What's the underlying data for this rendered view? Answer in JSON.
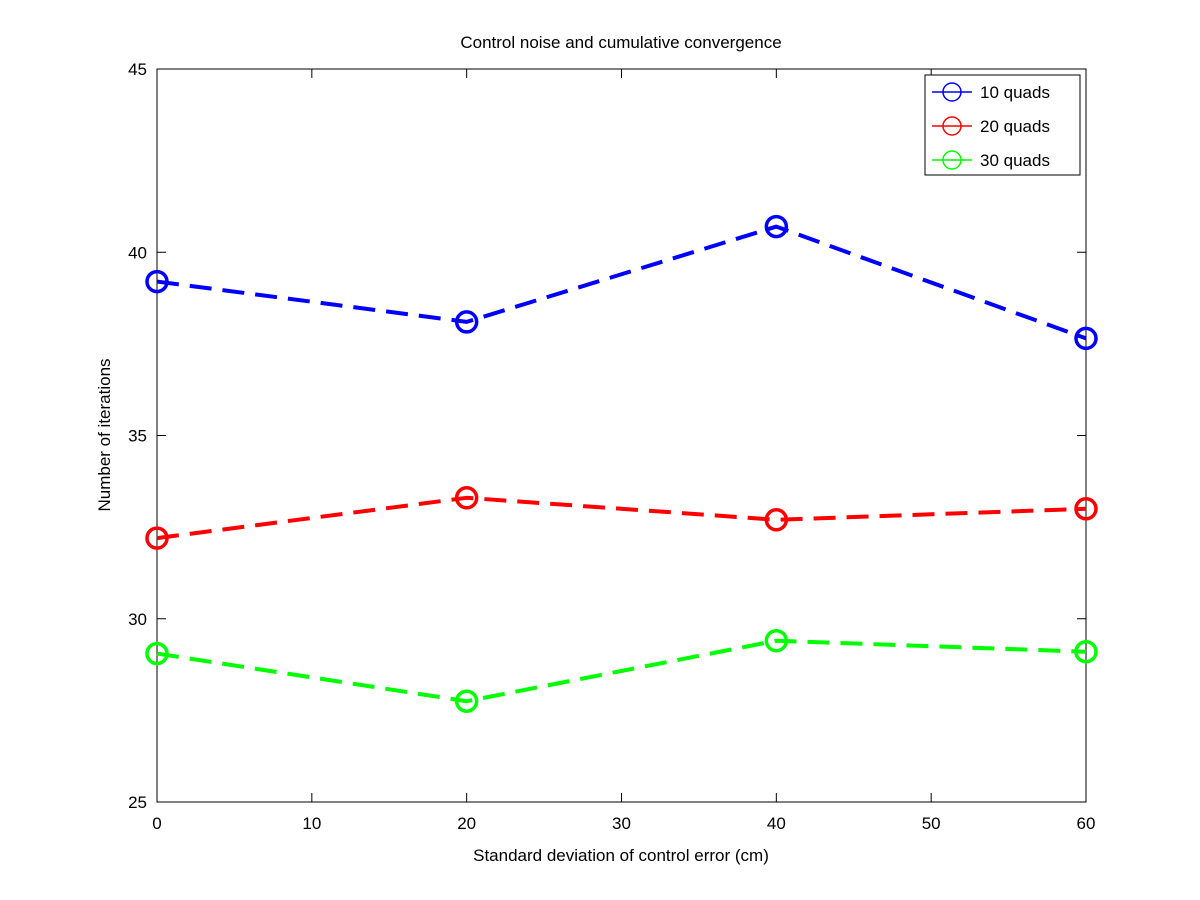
{
  "chart_data": {
    "type": "line",
    "title": "Control noise and cumulative convergence",
    "xlabel": "Standard deviation of control error (cm)",
    "ylabel": "Number of iterations",
    "x": [
      0,
      20,
      40,
      60
    ],
    "xlim": [
      0,
      60
    ],
    "ylim": [
      25,
      45
    ],
    "xticks": [
      0,
      10,
      20,
      30,
      40,
      50,
      60
    ],
    "yticks": [
      25,
      30,
      35,
      40,
      45
    ],
    "grid": false,
    "legend_position": "top-right",
    "line_style": "dashed",
    "marker": "circle",
    "series": [
      {
        "name": "10 quads",
        "color": "#0000ff",
        "values": [
          39.2,
          38.1,
          40.7,
          37.65
        ]
      },
      {
        "name": "20 quads",
        "color": "#ff0000",
        "values": [
          32.2,
          33.3,
          32.7,
          33.0
        ]
      },
      {
        "name": "30 quads",
        "color": "#00ff00",
        "values": [
          29.05,
          27.75,
          29.4,
          29.1
        ]
      }
    ]
  }
}
